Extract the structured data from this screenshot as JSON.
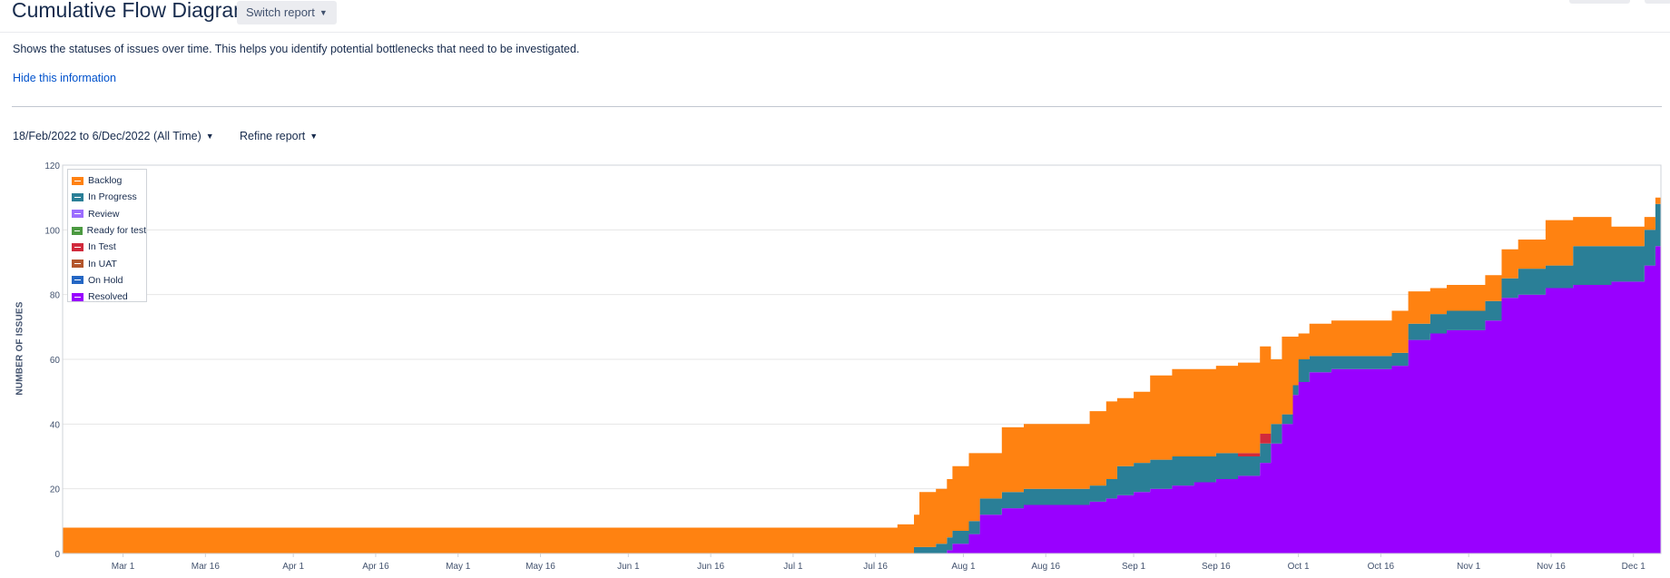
{
  "header": {
    "title": "Cumulative Flow Diagram",
    "switch_report_label": "Switch report"
  },
  "info": {
    "description": "Shows the statuses of issues over time. This helps you identify potential bottlenecks that need to be investigated.",
    "hide_link": "Hide this information"
  },
  "controls": {
    "date_range": "18/Feb/2022 to 6/Dec/2022 (All Time)",
    "refine_label": "Refine report"
  },
  "icons": {
    "dropdown": "chevron-down-icon",
    "legend_toggle": "legend-swatch-icon"
  },
  "colors": {
    "link": "#0052cc",
    "grid": "#e6e6e6",
    "axis_text": "#42526e"
  },
  "chart_data": {
    "type": "area",
    "stacked": true,
    "title": "",
    "ylabel": "NUMBER OF ISSUES",
    "xlabel": "",
    "ylim": [
      0,
      120
    ],
    "yticks": [
      0,
      20,
      40,
      60,
      80,
      100,
      120
    ],
    "xlim": [
      "2022-02-18",
      "2022-12-06"
    ],
    "xticks": [
      "2022-03-01",
      "2022-03-16",
      "2022-04-01",
      "2022-04-16",
      "2022-05-01",
      "2022-05-16",
      "2022-06-01",
      "2022-06-16",
      "2022-07-01",
      "2022-07-16",
      "2022-08-01",
      "2022-08-16",
      "2022-09-01",
      "2022-09-16",
      "2022-10-01",
      "2022-10-16",
      "2022-11-01",
      "2022-11-16",
      "2022-12-01"
    ],
    "xtick_labels": [
      "Mar 1",
      "Mar 16",
      "Apr 1",
      "Apr 16",
      "May 1",
      "May 16",
      "Jun 1",
      "Jun 16",
      "Jul 1",
      "Jul 16",
      "Aug 1",
      "Aug 16",
      "Sep 1",
      "Sep 16",
      "Oct 1",
      "Oct 16",
      "Nov 1",
      "Nov 16",
      "Dec 1"
    ],
    "grid": true,
    "legend_position": "top-left",
    "legend": [
      "Backlog",
      "In Progress",
      "Review",
      "Ready for test",
      "In Test",
      "In UAT",
      "On Hold",
      "Resolved"
    ],
    "series_colors": {
      "Backlog": "#ff8211",
      "In Progress": "#2a7f97",
      "Review": "#9c6dff",
      "Ready for test": "#4c9a42",
      "In Test": "#d12a3c",
      "In UAT": "#b3562c",
      "On Hold": "#2567c4",
      "Resolved": "#9900ff"
    },
    "x": [
      "2022-02-18",
      "2022-07-20",
      "2022-07-23",
      "2022-07-24",
      "2022-07-27",
      "2022-07-29",
      "2022-07-30",
      "2022-08-02",
      "2022-08-04",
      "2022-08-08",
      "2022-08-12",
      "2022-08-17",
      "2022-08-24",
      "2022-08-27",
      "2022-08-29",
      "2022-09-01",
      "2022-09-04",
      "2022-09-08",
      "2022-09-12",
      "2022-09-16",
      "2022-09-20",
      "2022-09-24",
      "2022-09-26",
      "2022-09-28",
      "2022-09-30",
      "2022-10-01",
      "2022-10-03",
      "2022-10-07",
      "2022-10-15",
      "2022-10-18",
      "2022-10-21",
      "2022-10-25",
      "2022-10-28",
      "2022-11-01",
      "2022-11-04",
      "2022-11-07",
      "2022-11-10",
      "2022-11-15",
      "2022-11-20",
      "2022-11-27",
      "2022-12-03",
      "2022-12-05",
      "2022-12-06"
    ],
    "series": [
      {
        "name": "Resolved",
        "values": [
          0,
          0,
          0,
          0,
          0,
          1,
          3,
          6,
          12,
          14,
          15,
          15,
          16,
          17,
          18,
          19,
          20,
          21,
          22,
          23,
          24,
          28,
          34,
          40,
          49,
          53,
          56,
          57,
          57,
          58,
          66,
          68,
          69,
          69,
          72,
          79,
          80,
          82,
          83,
          84,
          89,
          95,
          95
        ]
      },
      {
        "name": "In Progress",
        "values": [
          0,
          0,
          2,
          2,
          3,
          4,
          4,
          4,
          5,
          5,
          5,
          5,
          5,
          6,
          9,
          9,
          9,
          9,
          8,
          8,
          6,
          6,
          6,
          3,
          3,
          7,
          5,
          4,
          4,
          4,
          5,
          6,
          6,
          6,
          6,
          6,
          8,
          7,
          12,
          11,
          11,
          13,
          13
        ]
      },
      {
        "name": "In Test",
        "values": [
          0,
          0,
          0,
          0,
          0,
          0,
          0,
          0,
          0,
          0,
          0,
          0,
          0,
          0,
          0,
          0,
          0,
          0,
          0,
          0,
          1,
          3,
          0,
          0,
          0,
          0,
          0,
          0,
          0,
          0,
          0,
          0,
          0,
          0,
          0,
          0,
          0,
          0,
          0,
          0,
          0,
          0,
          0
        ]
      },
      {
        "name": "Backlog",
        "values": [
          8,
          9,
          10,
          17,
          17,
          18,
          20,
          21,
          14,
          20,
          20,
          20,
          23,
          24,
          21,
          22,
          26,
          27,
          27,
          27,
          28,
          27,
          20,
          24,
          15,
          8,
          10,
          11,
          11,
          13,
          10,
          8,
          8,
          8,
          8,
          9,
          9,
          14,
          9,
          6,
          4,
          2,
          6
        ]
      }
    ]
  }
}
